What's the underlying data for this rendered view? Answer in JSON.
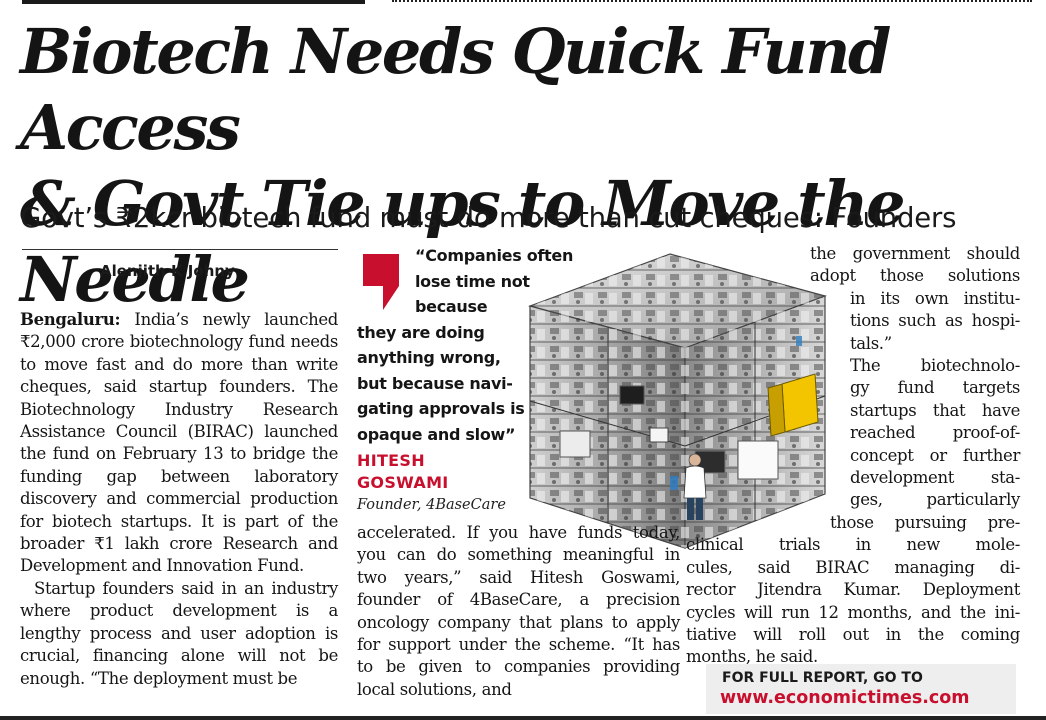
{
  "article": {
    "headline_line1": "Biotech Needs Quick Fund Access",
    "headline_line2": "& Govt Tie ups to Move the Needle",
    "subhead": "Govt’s ₹2kcr biotech fund must do more than cut cheques: Founders",
    "byline": "Alenjith K Johny",
    "col1": {
      "dateline": "Bengaluru:",
      "p1": " India’s newly launched ₹2,000 crore biotechnology fund needs to move fast and do more than write cheques, said startup founders. The Biotechnology Industry Research Assistance Council (BIRAC) launched the fund on February 13 to bridge the funding gap between laboratory discovery and commercial production for biotech startups. It is part of the broader ₹1 lakh crore Research and Development and Innovation Fund.",
      "p2": "Startup founders said in an industry where product development is a lengthy process and user adoption is crucial, financing alone will not be enough. “The deployment must be"
    },
    "pullquote": {
      "lines": [
        "“Companies often",
        "lose time not",
        "because",
        "they are doing",
        "anything wrong,",
        "but because navi-",
        "gating approvals is",
        "opaque and slow”"
      ],
      "name_line1": "HITESH",
      "name_line2": "GOSWAMI",
      "role": "Founder, 4BaseCare"
    },
    "col2": {
      "p1": "accelerated. If you have funds today, you can do something meaningful in two years,” said Hitesh Goswami, founder of 4BaseCare, a precision oncology company that plans to apply for support under the scheme. “It has to be given to companies providing local solutions, and"
    },
    "col3": {
      "lines": [
        "the government should",
        "adopt those solutions",
        "in its own institu-",
        "tions such as hospi-",
        "tals.”",
        "The biotechnolo-",
        "gy fund targets",
        "startups that have",
        "reached proof-of-",
        "concept or further",
        "development sta-",
        "ges, particularly",
        "those pursuing pre-",
        "clinical trials in new mole-",
        "cules, said BIRAC managing di-",
        "rector Jitendra Kumar. Deployment",
        "cycles will run 12 months, and the ini-",
        "tiative will roll out in the coming",
        "months, he said."
      ]
    },
    "promo": {
      "label": "FOR FULL REPORT, GO TO",
      "url": "www.economictimes.com"
    }
  },
  "colors": {
    "accent_red": "#c8102e",
    "text": "#151515",
    "promo_bg": "#eeeeee"
  },
  "icons": {
    "quote_mark": "red-quote-mark-icon",
    "illustration": "biotech-lab-cube-illustration"
  }
}
